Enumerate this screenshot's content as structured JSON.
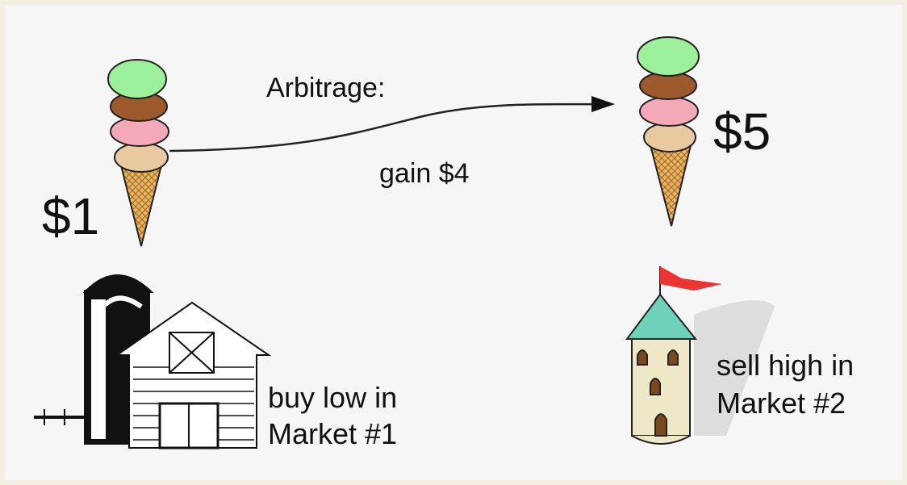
{
  "labels": {
    "arrow_label": "Arbitrage:",
    "gain": "gain $4",
    "price_1": "$1",
    "price_2": "$5",
    "market_1": [
      "buy low in",
      "Market #1"
    ],
    "market_2": [
      "sell high in",
      "Market #2"
    ]
  }
}
